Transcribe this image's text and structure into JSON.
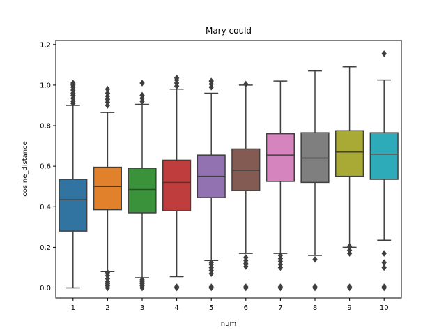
{
  "chart_data": {
    "type": "box",
    "title": "Mary could",
    "xlabel": "num",
    "ylabel": "cosine_distance",
    "ylim": [
      -0.05,
      1.22
    ],
    "yticks": [
      "0.0",
      "0.2",
      "0.4",
      "0.6",
      "0.8",
      "1.0",
      "1.2"
    ],
    "ytick_values": [
      0.0,
      0.2,
      0.4,
      0.6,
      0.8,
      1.0,
      1.2
    ],
    "grid": false,
    "legend": "none",
    "categories": [
      "1",
      "2",
      "3",
      "4",
      "5",
      "6",
      "7",
      "8",
      "9",
      "10"
    ],
    "boxes": [
      {
        "category": "1",
        "color": "#3274a1",
        "whisker_low": 0.0,
        "q1": 0.28,
        "median": 0.435,
        "q3": 0.535,
        "whisker_high": 0.9,
        "outliers": [
          0.91,
          0.92,
          0.935,
          0.95,
          0.96,
          0.975,
          0.99,
          1.0,
          1.01
        ]
      },
      {
        "category": "2",
        "color": "#e1812c",
        "whisker_low": 0.08,
        "q1": 0.385,
        "median": 0.5,
        "q3": 0.595,
        "whisker_high": 0.865,
        "outliers": [
          0.0,
          0.01,
          0.02,
          0.03,
          0.045,
          0.06,
          0.075,
          0.9,
          0.915,
          0.93,
          0.945,
          0.96,
          0.98
        ]
      },
      {
        "category": "3",
        "color": "#3a923a",
        "whisker_low": 0.05,
        "q1": 0.37,
        "median": 0.485,
        "q3": 0.59,
        "whisker_high": 0.905,
        "outliers": [
          0.0,
          0.01,
          0.02,
          0.03,
          0.04,
          0.92,
          0.935,
          0.95,
          1.01
        ]
      },
      {
        "category": "4",
        "color": "#c03d3e",
        "whisker_low": 0.055,
        "q1": 0.38,
        "median": 0.52,
        "q3": 0.63,
        "whisker_high": 0.98,
        "outliers": [
          0.0,
          0.005,
          0.995,
          1.01,
          1.025,
          1.035
        ]
      },
      {
        "category": "5",
        "color": "#9372b2",
        "whisker_low": 0.135,
        "q1": 0.445,
        "median": 0.55,
        "q3": 0.655,
        "whisker_high": 0.96,
        "outliers": [
          0.0,
          0.005,
          0.07,
          0.085,
          0.1,
          0.115,
          0.125,
          0.99,
          1.005,
          1.02
        ]
      },
      {
        "category": "6",
        "color": "#845b53",
        "whisker_low": 0.17,
        "q1": 0.48,
        "median": 0.58,
        "q3": 0.685,
        "whisker_high": 1.0,
        "outliers": [
          0.0,
          0.005,
          0.105,
          0.12,
          0.135,
          0.15,
          1.005
        ]
      },
      {
        "category": "7",
        "color": "#d684bd",
        "whisker_low": 0.17,
        "q1": 0.525,
        "median": 0.655,
        "q3": 0.76,
        "whisker_high": 1.02,
        "outliers": [
          0.0,
          0.005,
          0.1,
          0.115,
          0.13,
          0.145,
          0.16
        ]
      },
      {
        "category": "8",
        "color": "#7f7f7f",
        "whisker_low": 0.16,
        "q1": 0.52,
        "median": 0.64,
        "q3": 0.765,
        "whisker_high": 1.07,
        "outliers": [
          0.0,
          0.005,
          0.14
        ]
      },
      {
        "category": "9",
        "color": "#a9aa35",
        "whisker_low": 0.2,
        "q1": 0.55,
        "median": 0.67,
        "q3": 0.775,
        "whisker_high": 1.09,
        "outliers": [
          0.0,
          0.005,
          0.17,
          0.185,
          0.205
        ]
      },
      {
        "category": "10",
        "color": "#2eabb8",
        "whisker_low": 0.235,
        "q1": 0.535,
        "median": 0.66,
        "q3": 0.765,
        "whisker_high": 1.025,
        "outliers": [
          0.0,
          0.005,
          0.1,
          0.125,
          0.17,
          1.155
        ]
      }
    ]
  }
}
